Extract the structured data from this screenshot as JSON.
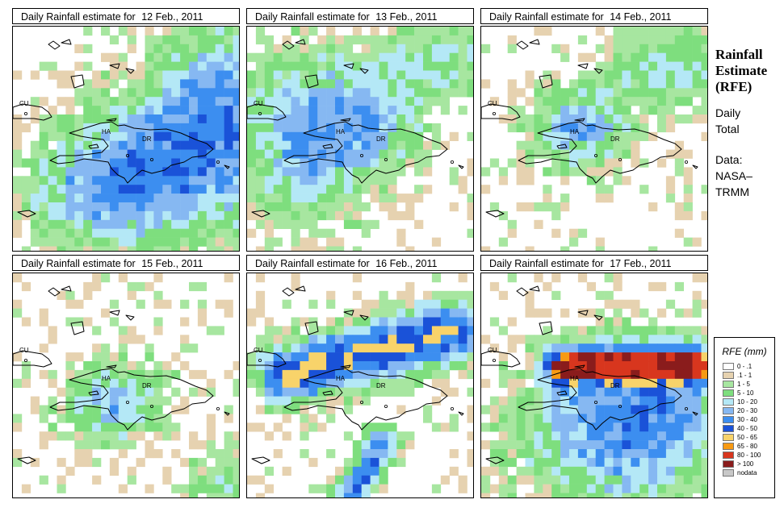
{
  "panel_title_prefix": "Daily Rainfall estimate for",
  "panels": [
    {
      "date": "12 Feb., 2011",
      "labels": {
        "cu": "CU",
        "ha": "HA",
        "dr": "DR"
      }
    },
    {
      "date": "13 Feb., 2011",
      "labels": {
        "cu": "CU",
        "ha": "HA",
        "dr": "DR"
      }
    },
    {
      "date": "14 Feb., 2011",
      "labels": {
        "cu": "CU",
        "ha": "HA",
        "dr": "DR"
      }
    },
    {
      "date": "15 Feb., 2011",
      "labels": {
        "cu": "CU",
        "ha": "HA",
        "dr": "DR"
      }
    },
    {
      "date": "16 Feb., 2011",
      "labels": {
        "cu": "CU",
        "ha": "HA",
        "dr": "DR"
      }
    },
    {
      "date": "17 Feb., 2011",
      "labels": {
        "cu": "CU",
        "ha": "HA",
        "dr": "DR"
      }
    }
  ],
  "side": {
    "title_line1": "Rainfall",
    "title_line2": "Estimate",
    "title_line3": "(RFE)",
    "daily": "Daily",
    "total": "Total",
    "data": "Data:",
    "nasa": "NASA–",
    "trmm": "TRMM"
  },
  "legend": {
    "title": "RFE (mm)",
    "items": [
      {
        "label": "0 - .1",
        "color": "#ffffff"
      },
      {
        "label": ".1 - 1",
        "color": "#e6d2b0"
      },
      {
        "label": "1 - 5",
        "color": "#a7e6a0"
      },
      {
        "label": "5 - 10",
        "color": "#7ede7e"
      },
      {
        "label": "10 - 20",
        "color": "#b4e8f6"
      },
      {
        "label": "20 - 30",
        "color": "#86b8f2"
      },
      {
        "label": "30 - 40",
        "color": "#3c8ef0"
      },
      {
        "label": "40 - 50",
        "color": "#1a52d8"
      },
      {
        "label": "50 - 65",
        "color": "#f8d36a"
      },
      {
        "label": "65 - 80",
        "color": "#f79a14"
      },
      {
        "label": "80 - 100",
        "color": "#d8361e"
      },
      {
        "label": "> 100",
        "color": "#8a1c1c"
      },
      {
        "label": "nodata",
        "color": "#c8c8c8"
      }
    ]
  }
}
